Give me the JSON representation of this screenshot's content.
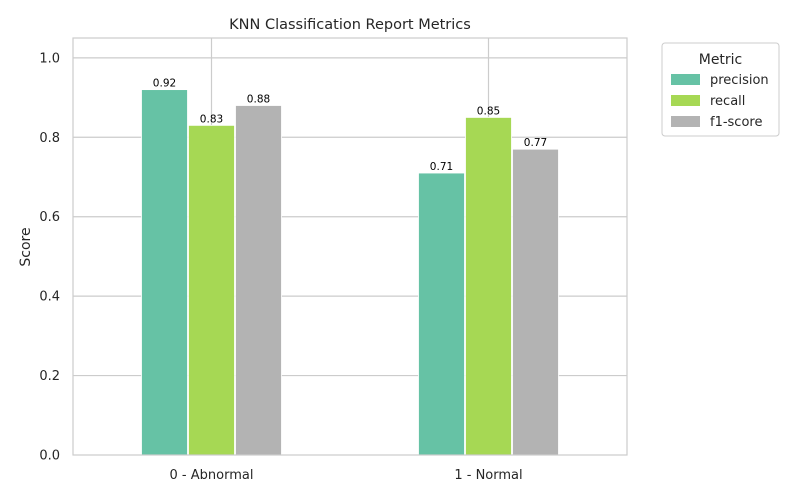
{
  "chart_data": {
    "type": "bar",
    "title": "KNN Classification Report Metrics",
    "xlabel": "",
    "ylabel": "Score",
    "categories": [
      "0 - Abnormal",
      "1 - Normal"
    ],
    "series": [
      {
        "name": "precision",
        "values": [
          0.92,
          0.71
        ],
        "color": "#66c2a5"
      },
      {
        "name": "recall",
        "values": [
          0.83,
          0.85
        ],
        "color": "#a6d854"
      },
      {
        "name": "f1-score",
        "values": [
          0.88,
          0.77
        ],
        "color": "#b3b3b3"
      }
    ],
    "data_labels": [
      [
        "0.92",
        "0.83",
        "0.88"
      ],
      [
        "0.71",
        "0.85",
        "0.77"
      ]
    ],
    "ylim": [
      0,
      1.05
    ],
    "yticks": [
      "0.0",
      "0.2",
      "0.4",
      "0.6",
      "0.8",
      "1.0"
    ],
    "ytick_values": [
      0,
      0.2,
      0.4,
      0.6,
      0.8,
      1.0
    ],
    "grid": true,
    "legend": {
      "title": "Metric",
      "placement": "outside-top-right"
    }
  }
}
